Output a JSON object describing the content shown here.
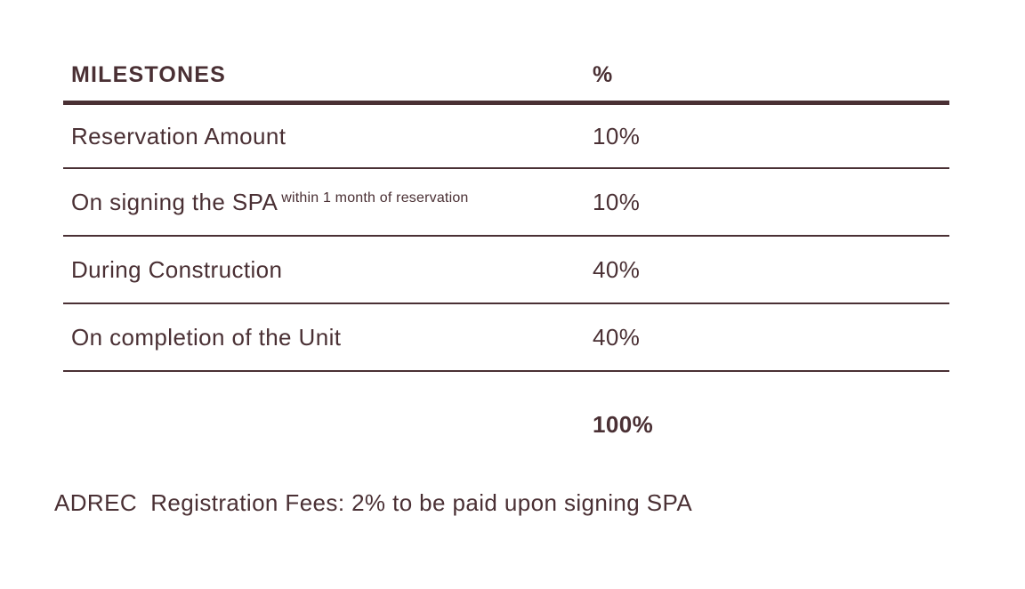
{
  "table": {
    "header": {
      "milestone": "MILESTONES",
      "percent": "%"
    },
    "rows": [
      {
        "milestone": "Reservation Amount",
        "note": "",
        "percent": "10%"
      },
      {
        "milestone": "On signing the SPA",
        "note": "within 1 month of reservation",
        "percent": "10%"
      },
      {
        "milestone": "During Construction",
        "note": "",
        "percent": "40%"
      },
      {
        "milestone": "On completion of the Unit",
        "note": "",
        "percent": "40%"
      }
    ],
    "total": "100%"
  },
  "footnote": "ADREC  Registration Fees: 2% to be paid upon signing SPA",
  "colors": {
    "text": "#4a3034",
    "background": "#ffffff"
  }
}
